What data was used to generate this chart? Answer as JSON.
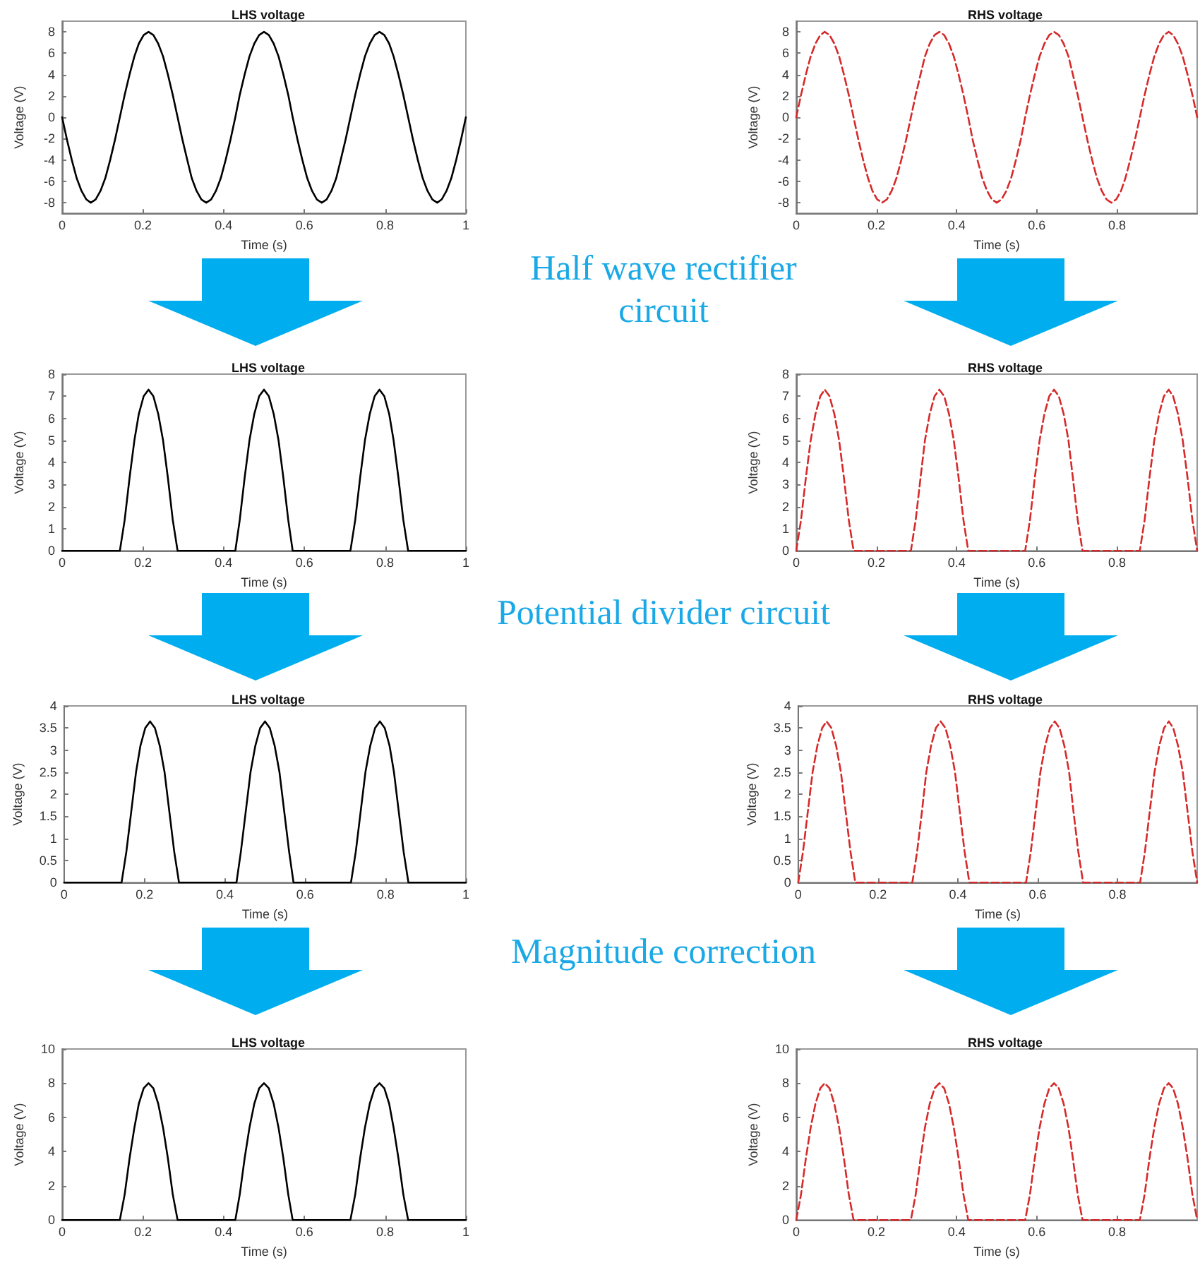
{
  "chart_data": [
    {
      "type": "line",
      "title": "LHS voltage",
      "xlabel": "Time (s)",
      "ylabel": "Voltage (V)",
      "xlim": [
        0,
        1
      ],
      "ylim": [
        -9,
        9
      ],
      "xticks": [
        0,
        0.2,
        0.4,
        0.6,
        0.8,
        1
      ],
      "yticks": [
        -8,
        -6,
        -4,
        -2,
        0,
        2,
        4,
        6,
        8
      ],
      "line_style": "solid",
      "annotations": [
        "Half wave rectifier circuit"
      ],
      "x": [
        0,
        0.012,
        0.024,
        0.036,
        0.048,
        0.06,
        0.071,
        0.083,
        0.095,
        0.107,
        0.119,
        0.131,
        0.143,
        0.155,
        0.167,
        0.179,
        0.19,
        0.202,
        0.214,
        0.226,
        0.238,
        0.25,
        0.262,
        0.274,
        0.286,
        0.298,
        0.31,
        0.321,
        0.333,
        0.345,
        0.357,
        0.369,
        0.381,
        0.393,
        0.405,
        0.417,
        0.429,
        0.44,
        0.452,
        0.464,
        0.476,
        0.488,
        0.5,
        0.512,
        0.524,
        0.536,
        0.548,
        0.56,
        0.571,
        0.583,
        0.595,
        0.607,
        0.619,
        0.631,
        0.643,
        0.655,
        0.667,
        0.679,
        0.69,
        0.702,
        0.714,
        0.726,
        0.738,
        0.75,
        0.762,
        0.774,
        0.786,
        0.798,
        0.81,
        0.821,
        0.833,
        0.845,
        0.857,
        0.869,
        0.881,
        0.893,
        0.905,
        0.917,
        0.929,
        0.94,
        0.952,
        0.964,
        0.976,
        0.988,
        1
      ],
      "series": [
        {
          "color": "#000000",
          "values": [
            0,
            -2.1,
            -4,
            -5.7,
            -6.9,
            -7.7,
            -8,
            -7.7,
            -6.9,
            -5.7,
            -4,
            -2.1,
            0,
            2.1,
            4,
            5.7,
            6.9,
            7.7,
            8,
            7.7,
            6.9,
            5.7,
            4,
            2.1,
            0,
            -2.1,
            -4,
            -5.7,
            -6.9,
            -7.7,
            -8,
            -7.7,
            -6.9,
            -5.7,
            -4,
            -2.1,
            0,
            2.1,
            4,
            5.7,
            6.9,
            7.7,
            8,
            7.7,
            6.9,
            5.7,
            4,
            2.1,
            0,
            -2.1,
            -4,
            -5.7,
            -6.9,
            -7.7,
            -8,
            -7.7,
            -6.9,
            -5.7,
            -4,
            -2.1,
            0,
            2.1,
            4,
            5.7,
            6.9,
            7.7,
            8,
            7.7,
            6.9,
            5.7,
            4,
            2.1,
            0,
            -2.1,
            -4,
            -5.7,
            -6.9,
            -7.7,
            -8,
            -7.7,
            -6.9,
            -5.7,
            -4,
            -2.1,
            0
          ]
        }
      ]
    },
    {
      "type": "line",
      "title": "RHS voltage",
      "xlabel": "Time (s)",
      "ylabel": "Voltage (V)",
      "xlim": [
        0,
        1
      ],
      "ylim": [
        -9,
        9
      ],
      "xticks": [
        0,
        0.2,
        0.4,
        0.6,
        0.8
      ],
      "yticks": [
        -8,
        -6,
        -4,
        -2,
        0,
        2,
        4,
        6,
        8
      ],
      "line_style": "dashed",
      "x": [
        0,
        0.012,
        0.024,
        0.036,
        0.048,
        0.06,
        0.071,
        0.083,
        0.095,
        0.107,
        0.119,
        0.131,
        0.143,
        0.155,
        0.167,
        0.179,
        0.19,
        0.202,
        0.214,
        0.226,
        0.238,
        0.25,
        0.262,
        0.274,
        0.286,
        0.298,
        0.31,
        0.321,
        0.333,
        0.345,
        0.357,
        0.369,
        0.381,
        0.393,
        0.405,
        0.417,
        0.429,
        0.44,
        0.452,
        0.464,
        0.476,
        0.488,
        0.5,
        0.512,
        0.524,
        0.536,
        0.548,
        0.56,
        0.571,
        0.583,
        0.595,
        0.607,
        0.619,
        0.631,
        0.643,
        0.655,
        0.667,
        0.679,
        0.69,
        0.702,
        0.714,
        0.726,
        0.738,
        0.75,
        0.762,
        0.774,
        0.786,
        0.798,
        0.81,
        0.821,
        0.833,
        0.845,
        0.857,
        0.869,
        0.881,
        0.893,
        0.905,
        0.917,
        0.929,
        0.94,
        0.952,
        0.964,
        0.976,
        0.988,
        1
      ],
      "series": [
        {
          "color": "#d62a2a",
          "values": [
            0,
            2.1,
            4,
            5.7,
            6.9,
            7.7,
            8,
            7.7,
            6.9,
            5.7,
            4,
            2.1,
            0,
            -2.1,
            -4,
            -5.7,
            -6.9,
            -7.7,
            -8,
            -7.7,
            -6.9,
            -5.7,
            -4,
            -2.1,
            0,
            2.1,
            4,
            5.7,
            6.9,
            7.7,
            8,
            7.7,
            6.9,
            5.7,
            4,
            2.1,
            0,
            -2.1,
            -4,
            -5.7,
            -6.9,
            -7.7,
            -8,
            -7.7,
            -6.9,
            -5.7,
            -4,
            -2.1,
            0,
            2.1,
            4,
            5.7,
            6.9,
            7.7,
            8,
            7.7,
            6.9,
            5.7,
            4,
            2.1,
            0,
            -2.1,
            -4,
            -5.7,
            -6.9,
            -7.7,
            -8,
            -7.7,
            -6.9,
            -5.7,
            -4,
            -2.1,
            0,
            2.1,
            4,
            5.7,
            6.9,
            7.7,
            8,
            7.7,
            6.9,
            5.7,
            4,
            2.1,
            0
          ]
        }
      ]
    },
    {
      "type": "line",
      "title": "LHS voltage",
      "xlabel": "Time (s)",
      "ylabel": "Voltage (V)",
      "xlim": [
        0,
        1
      ],
      "ylim": [
        0,
        8
      ],
      "xticks": [
        0,
        0.2,
        0.4,
        0.6,
        0.8,
        1
      ],
      "yticks": [
        0,
        1,
        2,
        3,
        4,
        5,
        6,
        7,
        8
      ],
      "line_style": "solid",
      "annotations": [
        "Potential divider circuit"
      ],
      "x": [
        0,
        0.012,
        0.024,
        0.036,
        0.048,
        0.06,
        0.071,
        0.083,
        0.095,
        0.107,
        0.119,
        0.131,
        0.143,
        0.155,
        0.167,
        0.179,
        0.19,
        0.202,
        0.214,
        0.226,
        0.238,
        0.25,
        0.262,
        0.274,
        0.286,
        0.298,
        0.31,
        0.321,
        0.333,
        0.345,
        0.357,
        0.369,
        0.381,
        0.393,
        0.405,
        0.417,
        0.429,
        0.44,
        0.452,
        0.464,
        0.476,
        0.488,
        0.5,
        0.512,
        0.524,
        0.536,
        0.548,
        0.56,
        0.571,
        0.583,
        0.595,
        0.607,
        0.619,
        0.631,
        0.643,
        0.655,
        0.667,
        0.679,
        0.69,
        0.702,
        0.714,
        0.726,
        0.738,
        0.75,
        0.762,
        0.774,
        0.786,
        0.798,
        0.81,
        0.821,
        0.833,
        0.845,
        0.857,
        0.869,
        0.881,
        0.893,
        0.905,
        0.917,
        0.929,
        0.94,
        0.952,
        0.964,
        0.976,
        0.988,
        1
      ],
      "series": [
        {
          "color": "#000000",
          "values": [
            0,
            0,
            0,
            0,
            0,
            0,
            0,
            0,
            0,
            0,
            0,
            0,
            0,
            1.4,
            3.3,
            5,
            6.2,
            7,
            7.3,
            7,
            6.2,
            5,
            3.3,
            1.4,
            0,
            0,
            0,
            0,
            0,
            0,
            0,
            0,
            0,
            0,
            0,
            0,
            0,
            1.4,
            3.3,
            5,
            6.2,
            7,
            7.3,
            7,
            6.2,
            5,
            3.3,
            1.4,
            0,
            0,
            0,
            0,
            0,
            0,
            0,
            0,
            0,
            0,
            0,
            0,
            0,
            1.4,
            3.3,
            5,
            6.2,
            7,
            7.3,
            7,
            6.2,
            5,
            3.3,
            1.4,
            0,
            0,
            0,
            0,
            0,
            0,
            0,
            0,
            0,
            0,
            0,
            0,
            0
          ]
        }
      ]
    },
    {
      "type": "line",
      "title": "RHS voltage",
      "xlabel": "Time (s)",
      "ylabel": "Voltage (V)",
      "xlim": [
        0,
        1
      ],
      "ylim": [
        0,
        8
      ],
      "xticks": [
        0,
        0.2,
        0.4,
        0.6,
        0.8
      ],
      "yticks": [
        0,
        1,
        2,
        3,
        4,
        5,
        6,
        7,
        8
      ],
      "line_style": "dashed",
      "x": [
        0,
        0.012,
        0.024,
        0.036,
        0.048,
        0.06,
        0.071,
        0.083,
        0.095,
        0.107,
        0.119,
        0.131,
        0.143,
        0.155,
        0.167,
        0.179,
        0.19,
        0.202,
        0.214,
        0.226,
        0.238,
        0.25,
        0.262,
        0.274,
        0.286,
        0.298,
        0.31,
        0.321,
        0.333,
        0.345,
        0.357,
        0.369,
        0.381,
        0.393,
        0.405,
        0.417,
        0.429,
        0.44,
        0.452,
        0.464,
        0.476,
        0.488,
        0.5,
        0.512,
        0.524,
        0.536,
        0.548,
        0.56,
        0.571,
        0.583,
        0.595,
        0.607,
        0.619,
        0.631,
        0.643,
        0.655,
        0.667,
        0.679,
        0.69,
        0.702,
        0.714,
        0.726,
        0.738,
        0.75,
        0.762,
        0.774,
        0.786,
        0.798,
        0.81,
        0.821,
        0.833,
        0.845,
        0.857,
        0.869,
        0.881,
        0.893,
        0.905,
        0.917,
        0.929,
        0.94,
        0.952,
        0.964,
        0.976,
        0.988,
        1
      ],
      "series": [
        {
          "color": "#d62a2a",
          "values": [
            0,
            1.4,
            3.3,
            5,
            6.2,
            7,
            7.3,
            7,
            6.2,
            5,
            3.3,
            1.4,
            0,
            0,
            0,
            0,
            0,
            0,
            0,
            0,
            0,
            0,
            0,
            0,
            0,
            1.4,
            3.3,
            5,
            6.2,
            7,
            7.3,
            7,
            6.2,
            5,
            3.3,
            1.4,
            0,
            0,
            0,
            0,
            0,
            0,
            0,
            0,
            0,
            0,
            0,
            0,
            0,
            1.4,
            3.3,
            5,
            6.2,
            7,
            7.3,
            7,
            6.2,
            5,
            3.3,
            1.4,
            0,
            0,
            0,
            0,
            0,
            0,
            0,
            0,
            0,
            0,
            0,
            0,
            0,
            1.4,
            3.3,
            5,
            6.2,
            7,
            7.3,
            7,
            6.2,
            5,
            3.3,
            1.4,
            0
          ]
        }
      ]
    },
    {
      "type": "line",
      "title": "LHS voltage",
      "xlabel": "Time (s)",
      "ylabel": "Voltage (V)",
      "xlim": [
        0,
        1
      ],
      "ylim": [
        0,
        4
      ],
      "xticks": [
        0,
        0.2,
        0.4,
        0.6,
        0.8,
        1
      ],
      "yticks": [
        0,
        0.5,
        1,
        1.5,
        2,
        2.5,
        3,
        3.5,
        4
      ],
      "line_style": "solid",
      "annotations": [
        "Magnitude correction"
      ],
      "x": [
        0,
        0.012,
        0.024,
        0.036,
        0.048,
        0.06,
        0.071,
        0.083,
        0.095,
        0.107,
        0.119,
        0.131,
        0.143,
        0.155,
        0.167,
        0.179,
        0.19,
        0.202,
        0.214,
        0.226,
        0.238,
        0.25,
        0.262,
        0.274,
        0.286,
        0.298,
        0.31,
        0.321,
        0.333,
        0.345,
        0.357,
        0.369,
        0.381,
        0.393,
        0.405,
        0.417,
        0.429,
        0.44,
        0.452,
        0.464,
        0.476,
        0.488,
        0.5,
        0.512,
        0.524,
        0.536,
        0.548,
        0.56,
        0.571,
        0.583,
        0.595,
        0.607,
        0.619,
        0.631,
        0.643,
        0.655,
        0.667,
        0.679,
        0.69,
        0.702,
        0.714,
        0.726,
        0.738,
        0.75,
        0.762,
        0.774,
        0.786,
        0.798,
        0.81,
        0.821,
        0.833,
        0.845,
        0.857,
        0.869,
        0.881,
        0.893,
        0.905,
        0.917,
        0.929,
        0.94,
        0.952,
        0.964,
        0.976,
        0.988,
        1
      ],
      "series": [
        {
          "color": "#000000",
          "values": [
            0,
            0,
            0,
            0,
            0,
            0,
            0,
            0,
            0,
            0,
            0,
            0,
            0,
            0.7,
            1.6,
            2.5,
            3.1,
            3.5,
            3.65,
            3.5,
            3.1,
            2.5,
            1.6,
            0.7,
            0,
            0,
            0,
            0,
            0,
            0,
            0,
            0,
            0,
            0,
            0,
            0,
            0,
            0.7,
            1.6,
            2.5,
            3.1,
            3.5,
            3.65,
            3.5,
            3.1,
            2.5,
            1.6,
            0.7,
            0,
            0,
            0,
            0,
            0,
            0,
            0,
            0,
            0,
            0,
            0,
            0,
            0,
            0.7,
            1.6,
            2.5,
            3.1,
            3.5,
            3.65,
            3.5,
            3.1,
            2.5,
            1.6,
            0.7,
            0,
            0,
            0,
            0,
            0,
            0,
            0,
            0,
            0,
            0,
            0,
            0,
            0
          ]
        }
      ]
    },
    {
      "type": "line",
      "title": "RHS voltage",
      "xlabel": "Time (s)",
      "ylabel": "Voltage (V)",
      "xlim": [
        0,
        1
      ],
      "ylim": [
        0,
        4
      ],
      "xticks": [
        0,
        0.2,
        0.4,
        0.6,
        0.8
      ],
      "yticks": [
        0,
        0.5,
        1,
        1.5,
        2,
        2.5,
        3,
        3.5,
        4
      ],
      "line_style": "dashed",
      "x": [
        0,
        0.012,
        0.024,
        0.036,
        0.048,
        0.06,
        0.071,
        0.083,
        0.095,
        0.107,
        0.119,
        0.131,
        0.143,
        0.155,
        0.167,
        0.179,
        0.19,
        0.202,
        0.214,
        0.226,
        0.238,
        0.25,
        0.262,
        0.274,
        0.286,
        0.298,
        0.31,
        0.321,
        0.333,
        0.345,
        0.357,
        0.369,
        0.381,
        0.393,
        0.405,
        0.417,
        0.429,
        0.44,
        0.452,
        0.464,
        0.476,
        0.488,
        0.5,
        0.512,
        0.524,
        0.536,
        0.548,
        0.56,
        0.571,
        0.583,
        0.595,
        0.607,
        0.619,
        0.631,
        0.643,
        0.655,
        0.667,
        0.679,
        0.69,
        0.702,
        0.714,
        0.726,
        0.738,
        0.75,
        0.762,
        0.774,
        0.786,
        0.798,
        0.81,
        0.821,
        0.833,
        0.845,
        0.857,
        0.869,
        0.881,
        0.893,
        0.905,
        0.917,
        0.929,
        0.94,
        0.952,
        0.964,
        0.976,
        0.988,
        1
      ],
      "series": [
        {
          "color": "#d62a2a",
          "values": [
            0,
            0.7,
            1.6,
            2.5,
            3.1,
            3.5,
            3.65,
            3.5,
            3.1,
            2.5,
            1.6,
            0.7,
            0,
            0,
            0,
            0,
            0,
            0,
            0,
            0,
            0,
            0,
            0,
            0,
            0,
            0.7,
            1.6,
            2.5,
            3.1,
            3.5,
            3.65,
            3.5,
            3.1,
            2.5,
            1.6,
            0.7,
            0,
            0,
            0,
            0,
            0,
            0,
            0,
            0,
            0,
            0,
            0,
            0,
            0,
            0.7,
            1.6,
            2.5,
            3.1,
            3.5,
            3.65,
            3.5,
            3.1,
            2.5,
            1.6,
            0.7,
            0,
            0,
            0,
            0,
            0,
            0,
            0,
            0,
            0,
            0,
            0,
            0,
            0,
            0.7,
            1.6,
            2.5,
            3.1,
            3.5,
            3.65,
            3.5,
            3.1,
            2.5,
            1.6,
            0.7,
            0
          ]
        }
      ]
    },
    {
      "type": "line",
      "title": "LHS voltage",
      "xlabel": "Time (s)",
      "ylabel": "Voltage (V)",
      "xlim": [
        0,
        1
      ],
      "ylim": [
        0,
        10
      ],
      "xticks": [
        0,
        0.2,
        0.4,
        0.6,
        0.8,
        1
      ],
      "yticks": [
        0,
        2,
        4,
        6,
        8,
        10
      ],
      "line_style": "solid",
      "x": [
        0,
        0.012,
        0.024,
        0.036,
        0.048,
        0.06,
        0.071,
        0.083,
        0.095,
        0.107,
        0.119,
        0.131,
        0.143,
        0.155,
        0.167,
        0.179,
        0.19,
        0.202,
        0.214,
        0.226,
        0.238,
        0.25,
        0.262,
        0.274,
        0.286,
        0.298,
        0.31,
        0.321,
        0.333,
        0.345,
        0.357,
        0.369,
        0.381,
        0.393,
        0.405,
        0.417,
        0.429,
        0.44,
        0.452,
        0.464,
        0.476,
        0.488,
        0.5,
        0.512,
        0.524,
        0.536,
        0.548,
        0.56,
        0.571,
        0.583,
        0.595,
        0.607,
        0.619,
        0.631,
        0.643,
        0.655,
        0.667,
        0.679,
        0.69,
        0.702,
        0.714,
        0.726,
        0.738,
        0.75,
        0.762,
        0.774,
        0.786,
        0.798,
        0.81,
        0.821,
        0.833,
        0.845,
        0.857,
        0.869,
        0.881,
        0.893,
        0.905,
        0.917,
        0.929,
        0.94,
        0.952,
        0.964,
        0.976,
        0.988,
        1
      ],
      "series": [
        {
          "color": "#000000",
          "values": [
            0,
            0,
            0,
            0,
            0,
            0,
            0,
            0,
            0,
            0,
            0,
            0,
            0,
            1.5,
            3.6,
            5.4,
            6.8,
            7.7,
            8,
            7.7,
            6.8,
            5.4,
            3.6,
            1.5,
            0,
            0,
            0,
            0,
            0,
            0,
            0,
            0,
            0,
            0,
            0,
            0,
            0,
            1.5,
            3.6,
            5.4,
            6.8,
            7.7,
            8,
            7.7,
            6.8,
            5.4,
            3.6,
            1.5,
            0,
            0,
            0,
            0,
            0,
            0,
            0,
            0,
            0,
            0,
            0,
            0,
            0,
            1.5,
            3.6,
            5.4,
            6.8,
            7.7,
            8,
            7.7,
            6.8,
            5.4,
            3.6,
            1.5,
            0,
            0,
            0,
            0,
            0,
            0,
            0,
            0,
            0,
            0,
            0,
            0,
            0
          ]
        }
      ]
    },
    {
      "type": "line",
      "title": "RHS voltage",
      "xlabel": "Time (s)",
      "ylabel": "Voltage (V)",
      "xlim": [
        0,
        1
      ],
      "ylim": [
        0,
        10
      ],
      "xticks": [
        0,
        0.2,
        0.4,
        0.6,
        0.8
      ],
      "yticks": [
        0,
        2,
        4,
        6,
        8,
        10
      ],
      "line_style": "dashed",
      "x": [
        0,
        0.012,
        0.024,
        0.036,
        0.048,
        0.06,
        0.071,
        0.083,
        0.095,
        0.107,
        0.119,
        0.131,
        0.143,
        0.155,
        0.167,
        0.179,
        0.19,
        0.202,
        0.214,
        0.226,
        0.238,
        0.25,
        0.262,
        0.274,
        0.286,
        0.298,
        0.31,
        0.321,
        0.333,
        0.345,
        0.357,
        0.369,
        0.381,
        0.393,
        0.405,
        0.417,
        0.429,
        0.44,
        0.452,
        0.464,
        0.476,
        0.488,
        0.5,
        0.512,
        0.524,
        0.536,
        0.548,
        0.56,
        0.571,
        0.583,
        0.595,
        0.607,
        0.619,
        0.631,
        0.643,
        0.655,
        0.667,
        0.679,
        0.69,
        0.702,
        0.714,
        0.726,
        0.738,
        0.75,
        0.762,
        0.774,
        0.786,
        0.798,
        0.81,
        0.821,
        0.833,
        0.845,
        0.857,
        0.869,
        0.881,
        0.893,
        0.905,
        0.917,
        0.929,
        0.94,
        0.952,
        0.964,
        0.976,
        0.988,
        1
      ],
      "series": [
        {
          "color": "#d62a2a",
          "values": [
            0,
            1.5,
            3.6,
            5.4,
            6.8,
            7.7,
            8,
            7.7,
            6.8,
            5.4,
            3.6,
            1.5,
            0,
            0,
            0,
            0,
            0,
            0,
            0,
            0,
            0,
            0,
            0,
            0,
            0,
            1.5,
            3.6,
            5.4,
            6.8,
            7.7,
            8,
            7.7,
            6.8,
            5.4,
            3.6,
            1.5,
            0,
            0,
            0,
            0,
            0,
            0,
            0,
            0,
            0,
            0,
            0,
            0,
            0,
            1.5,
            3.6,
            5.4,
            6.8,
            7.7,
            8,
            7.7,
            6.8,
            5.4,
            3.6,
            1.5,
            0,
            0,
            0,
            0,
            0,
            0,
            0,
            0,
            0,
            0,
            0,
            0,
            0,
            1.5,
            3.6,
            5.4,
            6.8,
            7.7,
            8,
            7.7,
            6.8,
            5.4,
            3.6,
            1.5,
            0
          ]
        }
      ]
    }
  ]
}
